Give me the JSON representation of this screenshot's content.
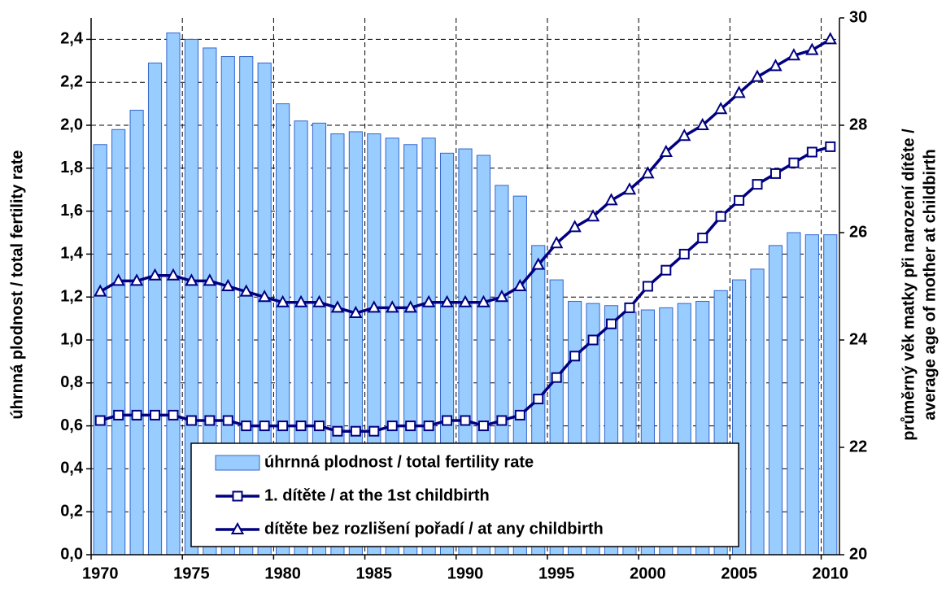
{
  "chart_data": {
    "type": "bar",
    "ylabel": "úhrnná plodnost / total fertility rate",
    "y2label": [
      "průměrný věk matky při narození dítěte /",
      "average age of mother at childbirth"
    ],
    "x": [
      1970,
      1971,
      1972,
      1973,
      1974,
      1975,
      1976,
      1977,
      1978,
      1979,
      1980,
      1981,
      1982,
      1983,
      1984,
      1985,
      1986,
      1987,
      1988,
      1989,
      1990,
      1991,
      1992,
      1993,
      1994,
      1995,
      1996,
      1997,
      1998,
      1999,
      2000,
      2001,
      2002,
      2003,
      2004,
      2005,
      2006,
      2007,
      2008,
      2009,
      2010
    ],
    "xlim": [
      1969.5,
      2010.5
    ],
    "xticks": [
      1970,
      1975,
      1980,
      1985,
      1990,
      1995,
      2000,
      2005,
      2010
    ],
    "ylim": [
      0,
      2.5
    ],
    "yticks": [
      {
        "value": 0,
        "label": "0,0"
      },
      {
        "value": 0.2,
        "label": "0,2"
      },
      {
        "value": 0.4,
        "label": "0,4"
      },
      {
        "value": 0.6,
        "label": "0,6"
      },
      {
        "value": 0.8,
        "label": "0,8"
      },
      {
        "value": 1.0,
        "label": "1,0"
      },
      {
        "value": 1.2,
        "label": "1,2"
      },
      {
        "value": 1.4,
        "label": "1,4"
      },
      {
        "value": 1.6,
        "label": "1,6"
      },
      {
        "value": 1.8,
        "label": "1,8"
      },
      {
        "value": 2.0,
        "label": "2,0"
      },
      {
        "value": 2.2,
        "label": "2,2"
      },
      {
        "value": 2.4,
        "label": "2,4"
      }
    ],
    "y2lim": [
      20,
      30
    ],
    "y2ticks": [
      20,
      22,
      24,
      26,
      28,
      30
    ],
    "grid": true,
    "legend": "lower center",
    "series": [
      {
        "name": "úhrnná plodnost / total fertility rate",
        "type": "bar",
        "color": "#99ccff",
        "edgecolor": "#3366cc",
        "values": [
          1.91,
          1.98,
          2.07,
          2.29,
          2.43,
          2.4,
          2.36,
          2.32,
          2.32,
          2.29,
          2.1,
          2.02,
          2.01,
          1.96,
          1.97,
          1.96,
          1.94,
          1.91,
          1.94,
          1.87,
          1.89,
          1.86,
          1.72,
          1.67,
          1.44,
          1.28,
          1.18,
          1.17,
          1.16,
          1.13,
          1.14,
          1.15,
          1.17,
          1.18,
          1.23,
          1.28,
          1.33,
          1.44,
          1.5,
          1.49,
          1.49
        ]
      },
      {
        "name": "1. dítěte / at the 1st childbirth",
        "type": "line",
        "axis": "y2",
        "color": "#000080",
        "marker": "square",
        "values": [
          22.5,
          22.6,
          22.6,
          22.6,
          22.6,
          22.5,
          22.5,
          22.5,
          22.4,
          22.4,
          22.4,
          22.4,
          22.4,
          22.3,
          22.3,
          22.3,
          22.4,
          22.4,
          22.4,
          22.5,
          22.5,
          22.4,
          22.5,
          22.6,
          22.9,
          23.3,
          23.7,
          24.0,
          24.3,
          24.6,
          25.0,
          25.3,
          25.6,
          25.9,
          26.3,
          26.6,
          26.9,
          27.1,
          27.3,
          27.5,
          27.6
        ]
      },
      {
        "name": "dítěte bez rozlišení pořadí / at any childbirth",
        "type": "line",
        "axis": "y2",
        "color": "#000080",
        "marker": "triangle",
        "values": [
          24.9,
          25.1,
          25.1,
          25.2,
          25.2,
          25.1,
          25.1,
          25.0,
          24.9,
          24.8,
          24.7,
          24.7,
          24.7,
          24.6,
          24.5,
          24.6,
          24.6,
          24.6,
          24.7,
          24.7,
          24.7,
          24.7,
          24.8,
          25.0,
          25.4,
          25.8,
          26.1,
          26.3,
          26.6,
          26.8,
          27.1,
          27.5,
          27.8,
          28.0,
          28.3,
          28.6,
          28.9,
          29.1,
          29.3,
          29.4,
          29.6
        ]
      }
    ]
  }
}
